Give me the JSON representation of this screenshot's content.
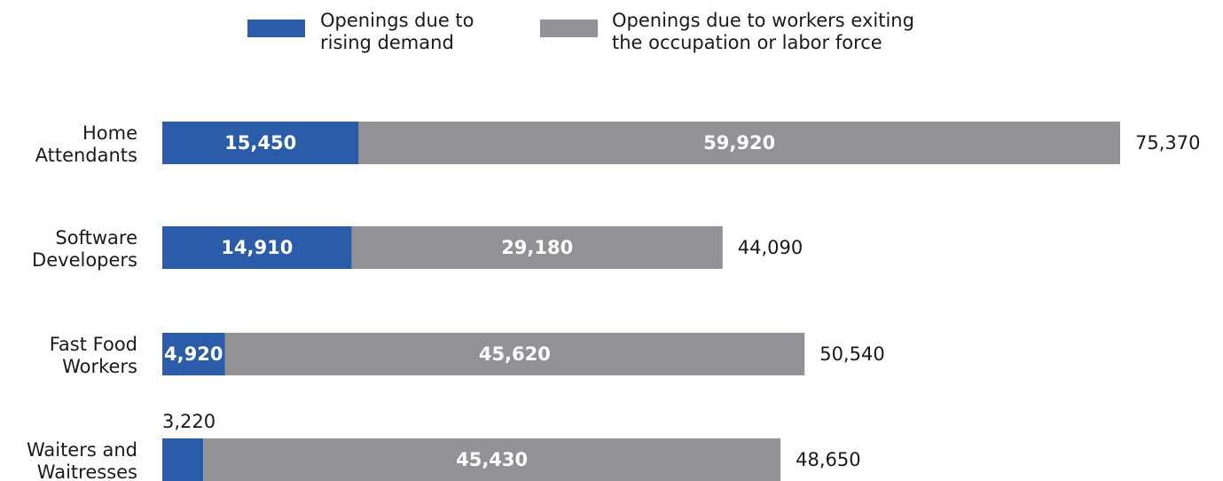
{
  "chart_data": {
    "type": "bar",
    "orientation": "horizontal",
    "stacked": true,
    "categories": [
      [
        "Home",
        "Attendants"
      ],
      [
        "Software",
        "Developers"
      ],
      [
        "Fast Food",
        "Workers"
      ],
      [
        "Waiters and",
        "Waitresses"
      ]
    ],
    "series": [
      {
        "name": [
          "Openings due to",
          "rising demand"
        ],
        "color": "#2a5caa",
        "values": [
          15450,
          14910,
          4920,
          3220
        ],
        "labels": [
          "15,450",
          "14,910",
          "4,920",
          "3,220"
        ]
      },
      {
        "name": [
          "Openings due to workers exiting",
          "the occupation or labor force"
        ],
        "color": "#929195",
        "values": [
          59920,
          29180,
          45620,
          45430
        ],
        "labels": [
          "59,920",
          "29,180",
          "45,620",
          "45,430"
        ]
      }
    ],
    "totals": [
      75370,
      44090,
      50540,
      48650
    ],
    "total_labels": [
      "75,370",
      "44,090",
      "50,540",
      "48,650"
    ],
    "xlim": [
      0,
      75370
    ],
    "grid": false,
    "legend_position": "top"
  }
}
